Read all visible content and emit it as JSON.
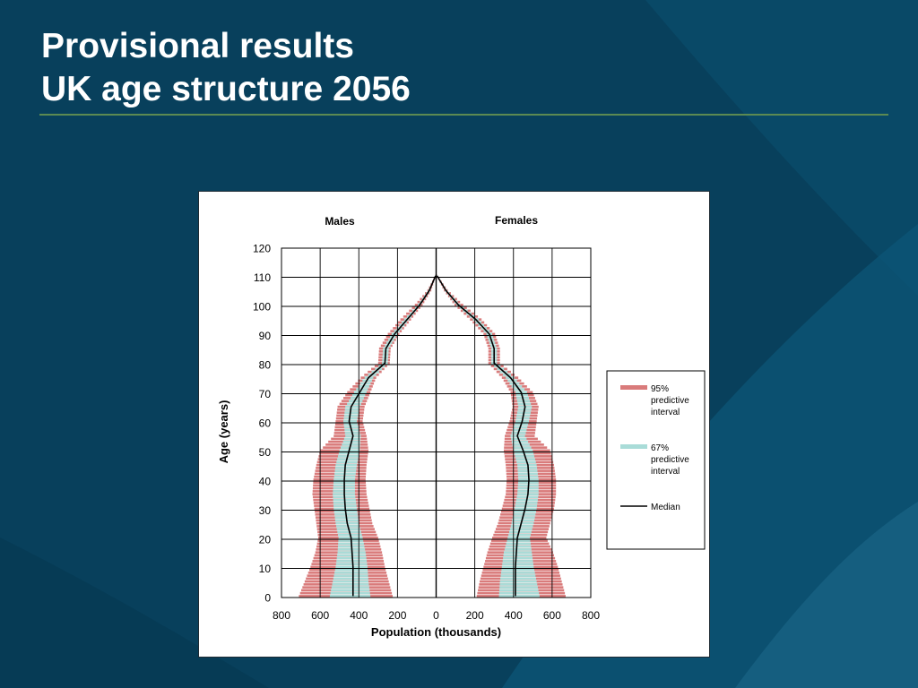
{
  "slide": {
    "title_line1": "Provisional results",
    "title_line2": "UK age structure 2056"
  },
  "colors": {
    "background": "#08405c",
    "accent_rule": "#5c8a52",
    "interval_95": "#d97b7b",
    "interval_67": "#a9dcd8",
    "median": "#000000"
  },
  "chart_data": {
    "type": "bar",
    "title": "",
    "males_label": "Males",
    "females_label": "Females",
    "xlabel": "Population (thousands)",
    "ylabel": "Age  (years)",
    "xlim": [
      -800,
      800
    ],
    "ylim": [
      0,
      120
    ],
    "x_ticks": [
      -800,
      -600,
      -400,
      -200,
      0,
      200,
      400,
      600,
      800
    ],
    "x_tick_labels": [
      "800",
      "600",
      "400",
      "200",
      "0",
      "200",
      "400",
      "600",
      "800"
    ],
    "y_ticks": [
      0,
      10,
      20,
      30,
      40,
      50,
      60,
      70,
      80,
      90,
      100,
      110,
      120
    ],
    "y_tick_labels": [
      "0",
      "10",
      "20",
      "30",
      "40",
      "50",
      "60",
      "70",
      "80",
      "90",
      "100",
      "110",
      "120"
    ],
    "grid": true,
    "legend_position": "right",
    "legend": [
      {
        "key": "p95",
        "label": "95% predictive interval"
      },
      {
        "key": "p67",
        "label": "67% predictive interval"
      },
      {
        "key": "median",
        "label": "Median"
      }
    ],
    "ages": [
      0,
      5,
      10,
      15,
      20,
      25,
      30,
      35,
      40,
      45,
      50,
      55,
      60,
      65,
      70,
      75,
      80,
      85,
      90,
      95,
      100,
      105,
      110
    ],
    "series": [
      {
        "key": "males",
        "side": "left",
        "median": [
          430,
          430,
          430,
          435,
          440,
          460,
          470,
          475,
          475,
          470,
          450,
          430,
          450,
          440,
          395,
          350,
          265,
          260,
          215,
          150,
          85,
          35,
          3
        ],
        "p67_low": [
          340,
          350,
          355,
          365,
          380,
          400,
          410,
          420,
          420,
          410,
          395,
          390,
          410,
          395,
          360,
          325,
          250,
          245,
          200,
          140,
          80,
          30,
          2
        ],
        "p67_high": [
          550,
          535,
          520,
          510,
          505,
          520,
          530,
          535,
          530,
          520,
          500,
          470,
          480,
          470,
          425,
          370,
          280,
          275,
          230,
          165,
          95,
          40,
          4
        ],
        "p95_low": [
          225,
          245,
          265,
          280,
          300,
          330,
          345,
          360,
          365,
          360,
          350,
          360,
          380,
          370,
          340,
          310,
          240,
          235,
          190,
          130,
          70,
          25,
          1
        ],
        "p95_high": [
          710,
          680,
          650,
          625,
          610,
          620,
          630,
          640,
          635,
          620,
          600,
          530,
          520,
          510,
          460,
          390,
          300,
          295,
          250,
          185,
          110,
          45,
          5
        ]
      },
      {
        "key": "females",
        "side": "right",
        "median": [
          410,
          410,
          410,
          415,
          420,
          440,
          460,
          475,
          480,
          475,
          450,
          420,
          445,
          460,
          440,
          385,
          300,
          300,
          275,
          205,
          115,
          50,
          5
        ],
        "p67_low": [
          325,
          330,
          340,
          350,
          370,
          390,
          405,
          420,
          425,
          420,
          400,
          385,
          410,
          425,
          410,
          360,
          285,
          285,
          260,
          190,
          105,
          45,
          3
        ],
        "p67_high": [
          535,
          520,
          505,
          495,
          485,
          505,
          520,
          530,
          530,
          520,
          500,
          460,
          480,
          495,
          470,
          405,
          315,
          315,
          290,
          220,
          125,
          55,
          6
        ],
        "p95_low": [
          210,
          225,
          245,
          265,
          290,
          320,
          340,
          360,
          365,
          360,
          350,
          355,
          380,
          395,
          385,
          340,
          270,
          270,
          245,
          175,
          95,
          40,
          2
        ],
        "p95_high": [
          670,
          650,
          630,
          605,
          570,
          590,
          610,
          620,
          620,
          610,
          590,
          510,
          520,
          530,
          500,
          425,
          330,
          330,
          305,
          235,
          140,
          60,
          7
        ]
      }
    ]
  }
}
